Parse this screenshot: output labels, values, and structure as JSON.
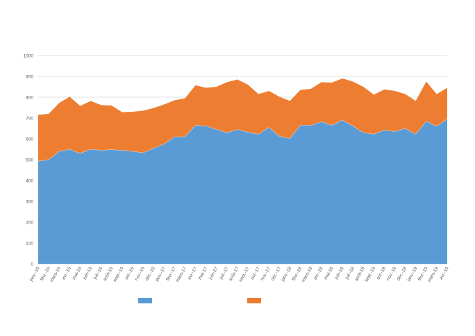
{
  "chart_data": {
    "type": "area",
    "stacked": true,
    "categories": [
      "janv.-16",
      "févr.-16",
      "mars-16",
      "avr.-16",
      "mai-16",
      "juin-16",
      "juil.-16",
      "août-16",
      "sept.-16",
      "oct.-16",
      "nov.-16",
      "déc.-16",
      "janv.-17",
      "févr.-17",
      "mars-17",
      "avr.-17",
      "mai-17",
      "juin-17",
      "juil.-17",
      "août-17",
      "sept.-17",
      "oct.-17",
      "nov.-17",
      "déc.-17",
      "janv.-18",
      "févr.-18",
      "mars-18",
      "avr.-18",
      "mai-18",
      "juin-18",
      "juil.-18",
      "août-18",
      "sept.-18",
      "oct.-18",
      "nov.-18",
      "déc.-18",
      "janv.-19",
      "févr.-19",
      "mars-19",
      "avr.-19"
    ],
    "series": [
      {
        "color": "#5b9bd5",
        "values": [
          493,
          500,
          540,
          550,
          530,
          550,
          545,
          548,
          545,
          540,
          533,
          555,
          575,
          610,
          610,
          665,
          662,
          645,
          630,
          645,
          632,
          622,
          655,
          612,
          602,
          665,
          665,
          682,
          665,
          690,
          662,
          630,
          622,
          642,
          635,
          650,
          622,
          685,
          660,
          695
        ]
      },
      {
        "color": "#ed7d31",
        "values": [
          222,
          220,
          232,
          252,
          228,
          232,
          217,
          212,
          183,
          190,
          202,
          193,
          190,
          175,
          185,
          192,
          183,
          205,
          242,
          240,
          228,
          193,
          175,
          190,
          180,
          170,
          175,
          190,
          205,
          200,
          213,
          220,
          190,
          195,
          195,
          165,
          160,
          190,
          155,
          150
        ]
      }
    ],
    "ylim": [
      0,
      1000
    ],
    "yticks": [
      0,
      100,
      200,
      300,
      400,
      500,
      600,
      700,
      800,
      900,
      1000
    ],
    "grid": true,
    "legend_position": "bottom",
    "title": "",
    "xlabel": "",
    "ylabel": ""
  }
}
